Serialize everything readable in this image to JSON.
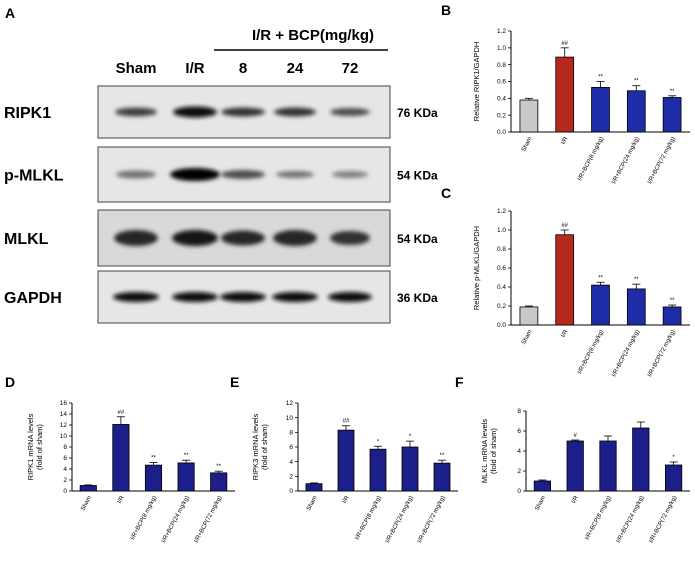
{
  "panels": {
    "A": "A",
    "B": "B",
    "C": "C",
    "D": "D",
    "E": "E",
    "F": "F"
  },
  "blot": {
    "treatment_header": "I/R + BCP(mg/kg)",
    "lanes": [
      "Sham",
      "I/R",
      "8",
      "24",
      "72"
    ],
    "rows": [
      {
        "name": "RIPK1",
        "size": "76 KDa"
      },
      {
        "name": "p-MLKL",
        "size": "54 KDa"
      },
      {
        "name": "MLKL",
        "size": "54 KDa"
      },
      {
        "name": "GAPDH",
        "size": "36 KDa"
      }
    ]
  },
  "colors": {
    "sham": "#c8c8c8",
    "ir": "#b5291e",
    "bcp": "#1f2ca8",
    "navy": "#1c1f8a"
  },
  "chart_data": [
    {
      "id": "B",
      "type": "bar",
      "ylabel": "Relative RIPK1/GAPDH",
      "ylim": [
        0,
        1.2
      ],
      "yticks": [
        0.0,
        0.2,
        0.4,
        0.6,
        0.8,
        1.0,
        1.2
      ],
      "categories": [
        "Sham",
        "I/R",
        "I/R+BCP(8 mg/kg)",
        "I/R+BCP(24 mg/kg)",
        "I/R+BCP(72 mg/kg)"
      ],
      "values": [
        0.38,
        0.89,
        0.53,
        0.49,
        0.41
      ],
      "errors": [
        0.02,
        0.11,
        0.07,
        0.06,
        0.02
      ],
      "annotations": [
        "",
        "##",
        "**",
        "**",
        "**"
      ]
    },
    {
      "id": "C",
      "type": "bar",
      "ylabel": "Relative p-MLKL/GAPDH",
      "ylim": [
        0,
        1.2
      ],
      "yticks": [
        0.0,
        0.2,
        0.4,
        0.6,
        0.8,
        1.0,
        1.2
      ],
      "categories": [
        "Sham",
        "I/R",
        "I/R+BCP(8 mg/kg)",
        "I/R+BCP(24 mg/kg)",
        "I/R+BCP(72 mg/kg)"
      ],
      "values": [
        0.19,
        0.95,
        0.42,
        0.38,
        0.19
      ],
      "errors": [
        0.01,
        0.05,
        0.03,
        0.05,
        0.02
      ],
      "annotations": [
        "",
        "##",
        "**",
        "**",
        "**"
      ]
    },
    {
      "id": "D",
      "type": "bar",
      "ylabel": "RIPK1 mRNA levels",
      "ylabel2": "(fold of sham)",
      "ylim": [
        0,
        16
      ],
      "yticks": [
        0,
        2,
        4,
        6,
        8,
        10,
        12,
        14,
        16
      ],
      "categories": [
        "Sham",
        "I/R",
        "I/R+BCP(8 mg/kg)",
        "I/R+BCP(24 mg/kg)",
        "I/R+BCP(72 mg/kg)"
      ],
      "values": [
        1.0,
        12.1,
        4.7,
        5.1,
        3.3
      ],
      "errors": [
        0.1,
        1.4,
        0.5,
        0.5,
        0.3
      ],
      "annotations": [
        "",
        "##",
        "**",
        "**",
        "**"
      ]
    },
    {
      "id": "E",
      "type": "bar",
      "ylabel": "RIPK3 mRNA levels",
      "ylabel2": "(fold of sham)",
      "ylim": [
        0,
        12
      ],
      "yticks": [
        0,
        2,
        4,
        6,
        8,
        10,
        12
      ],
      "categories": [
        "Sham",
        "I/R",
        "I/R+BCP(8 mg/kg)",
        "I/R+BCP(24 mg/kg)",
        "I/R+BCP(72 mg/kg)"
      ],
      "values": [
        1.0,
        8.3,
        5.7,
        6.0,
        3.8
      ],
      "errors": [
        0.1,
        0.6,
        0.4,
        0.8,
        0.4
      ],
      "annotations": [
        "",
        "##",
        "*",
        "*",
        "**"
      ]
    },
    {
      "id": "F",
      "type": "bar",
      "ylabel": "MLKL mRNA levels",
      "ylabel2": "(fold of sham)",
      "ylim": [
        0,
        8
      ],
      "yticks": [
        0,
        2,
        4,
        6,
        8
      ],
      "categories": [
        "Sham",
        "I/R",
        "I/R+BCP(8 mg/kg)",
        "I/R+BCP(24 mg/kg)",
        "I/R+BCP(72 mg/kg)"
      ],
      "values": [
        1.0,
        5.0,
        5.0,
        6.3,
        2.6
      ],
      "errors": [
        0.1,
        0.1,
        0.5,
        0.6,
        0.3
      ],
      "annotations": [
        "",
        "#",
        "",
        "",
        "*"
      ]
    }
  ]
}
